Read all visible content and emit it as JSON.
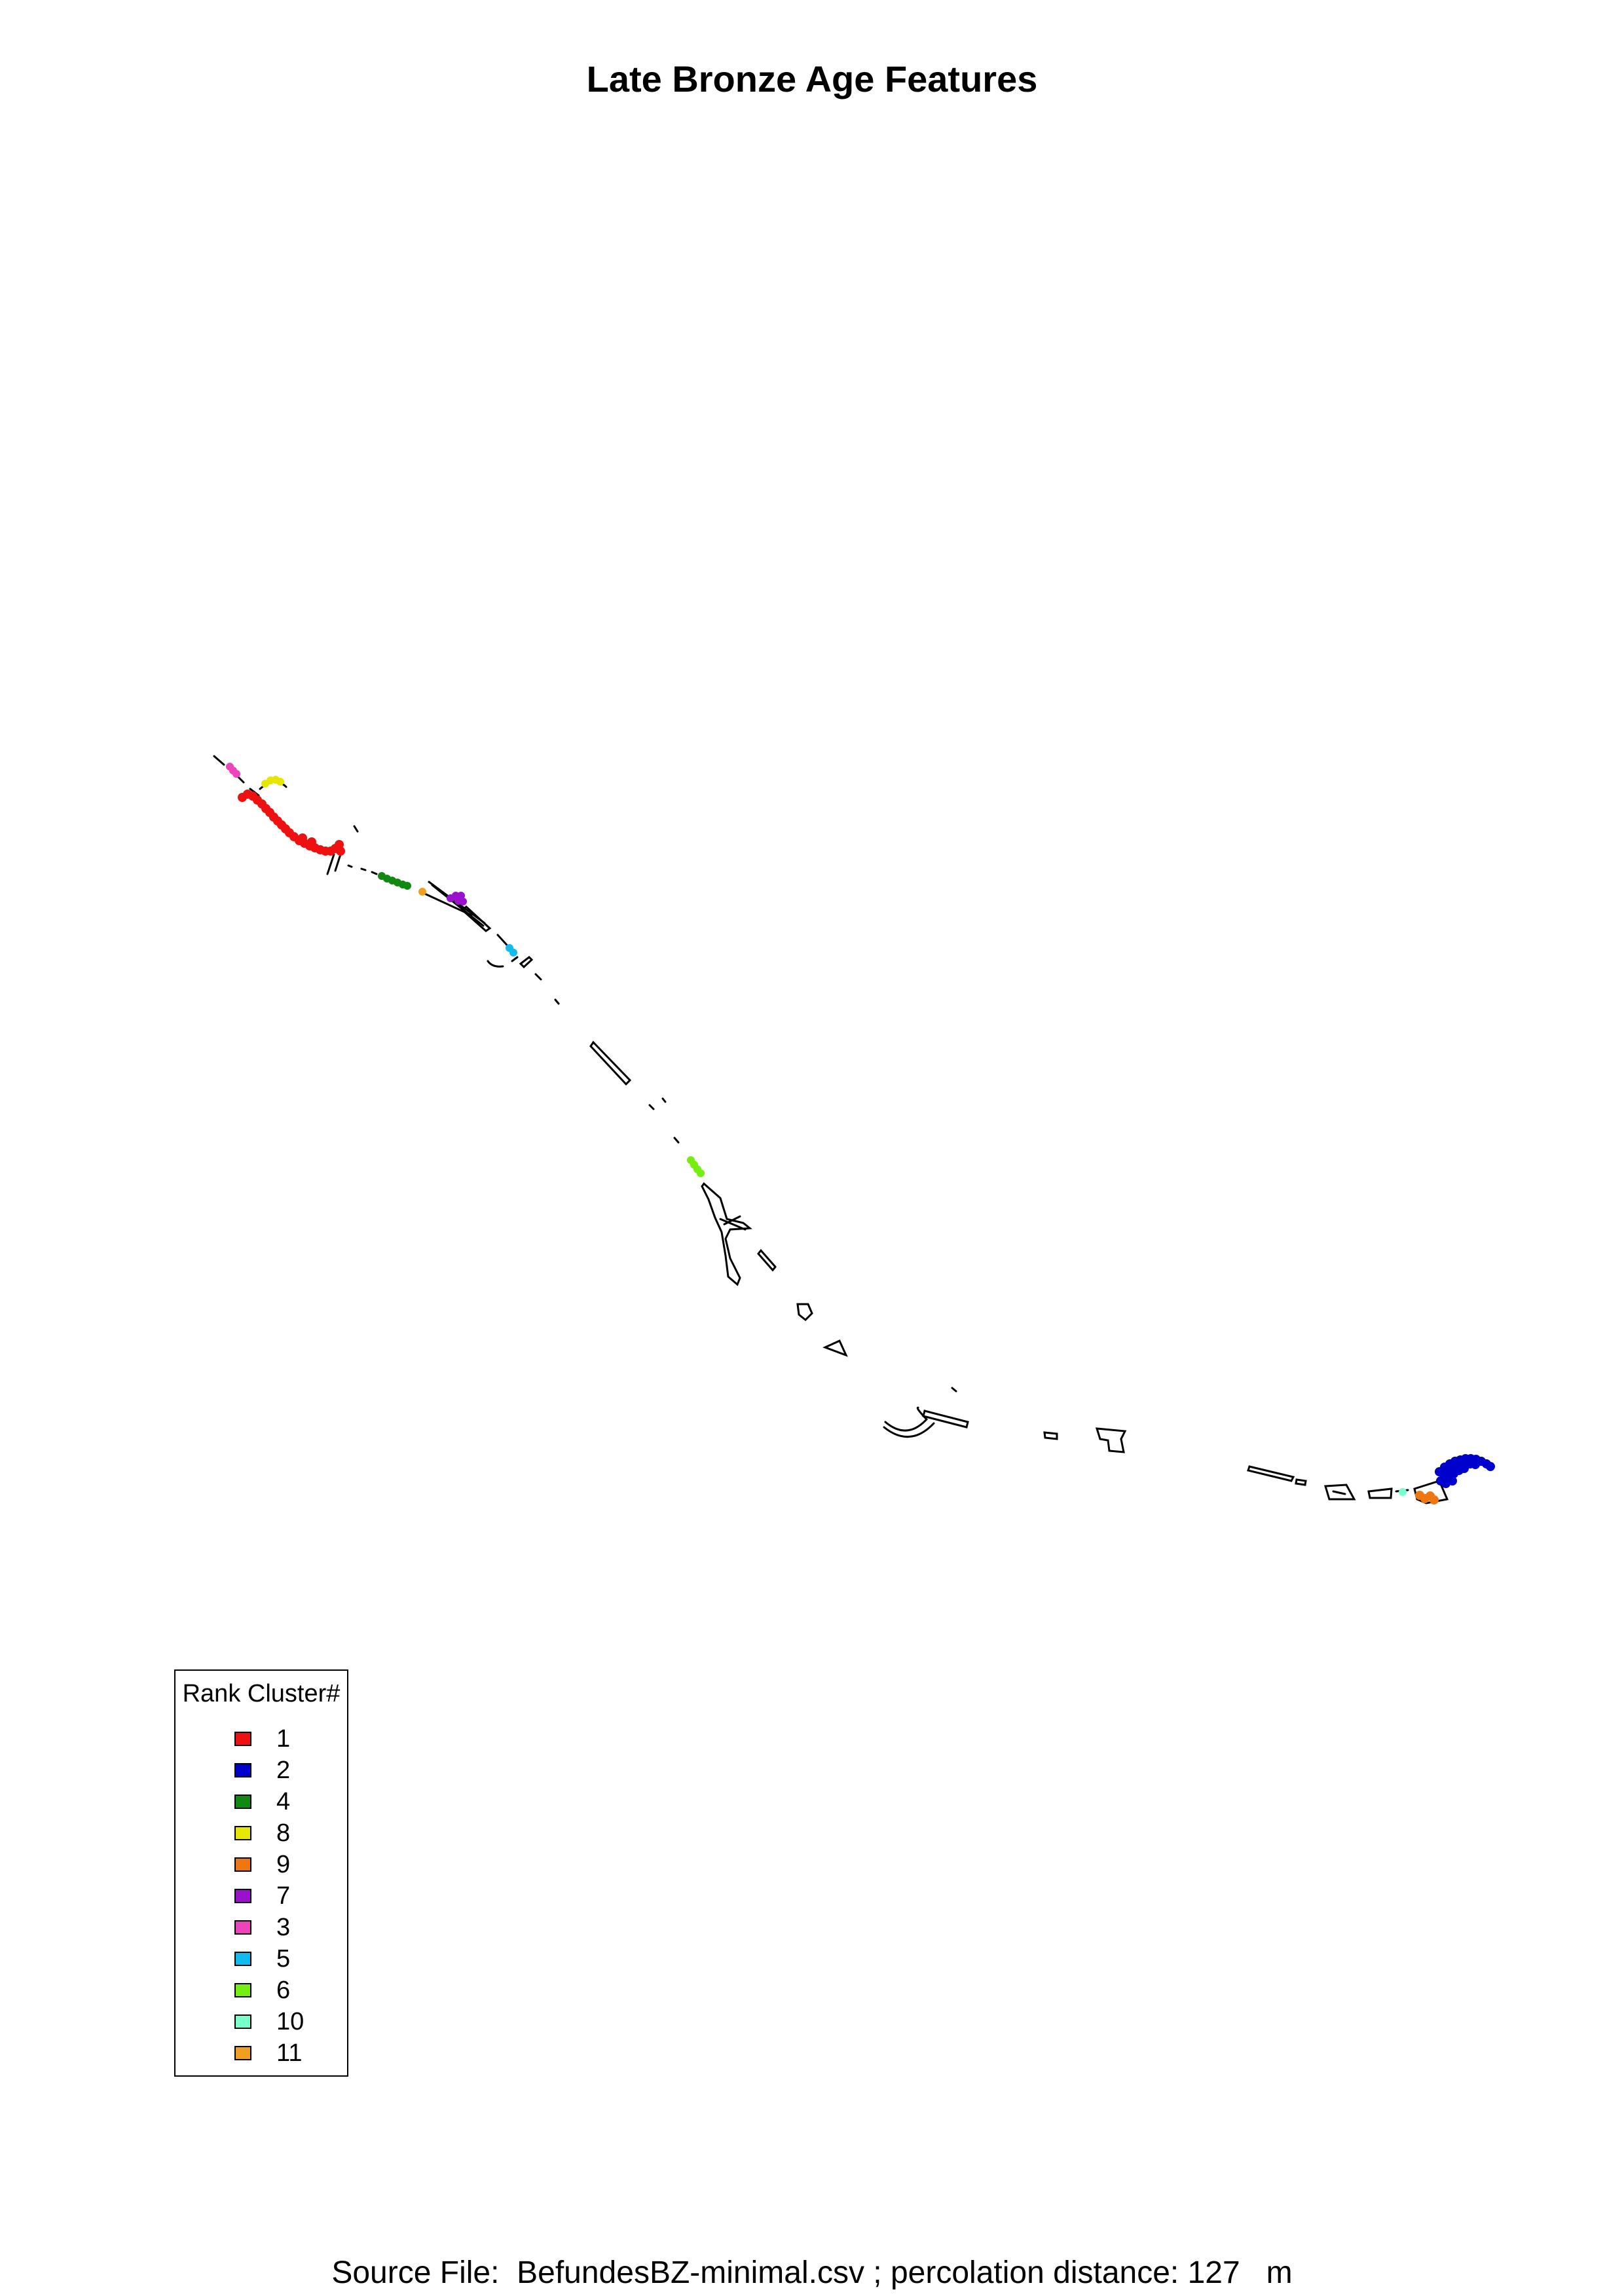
{
  "title": "Late Bronze Age Features",
  "legend": {
    "title": "Rank Cluster#",
    "items": [
      {
        "label": "1",
        "color": "#ee1111"
      },
      {
        "label": "2",
        "color": "#0000cc"
      },
      {
        "label": "4",
        "color": "#118811"
      },
      {
        "label": "8",
        "color": "#e6e600"
      },
      {
        "label": "9",
        "color": "#ee7711"
      },
      {
        "label": "7",
        "color": "#9911cc"
      },
      {
        "label": "3",
        "color": "#ee44bb"
      },
      {
        "label": "5",
        "color": "#11bbee"
      },
      {
        "label": "6",
        "color": "#77ee11"
      },
      {
        "label": "10",
        "color": "#77ffcc"
      },
      {
        "label": "11",
        "color": "#f0a020"
      }
    ]
  },
  "footer": "Source File:  BefundesBZ-minimal.csv ; percolation distance: 127   m"
}
